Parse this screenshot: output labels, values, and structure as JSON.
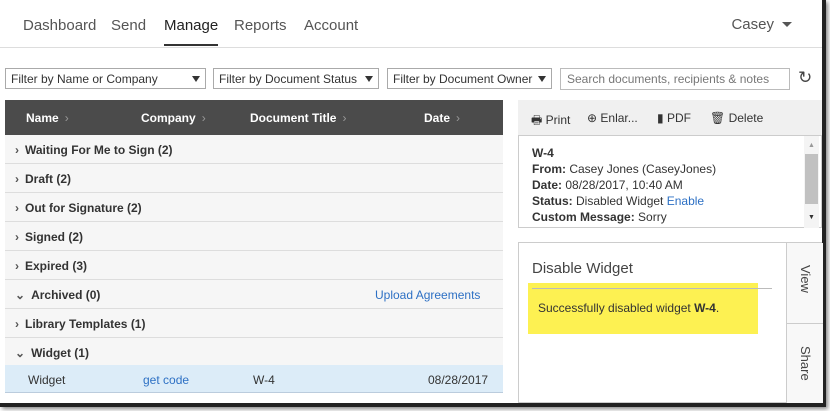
{
  "nav": {
    "tabs": [
      "Dashboard",
      "Send",
      "Manage",
      "Reports",
      "Account"
    ],
    "active": "Manage",
    "user": "Casey"
  },
  "filters": {
    "name": "Filter by Name or Company",
    "status": "Filter by Document Status",
    "owner": "Filter by Document Owner",
    "search_placeholder": "Search documents, recipients & notes"
  },
  "table": {
    "headers": [
      "Name",
      "Company",
      "Document Title",
      "Date"
    ],
    "groups": [
      {
        "label": "Waiting For Me to Sign (2)",
        "expanded": false
      },
      {
        "label": "Draft (2)",
        "expanded": false
      },
      {
        "label": "Out for Signature (2)",
        "expanded": false
      },
      {
        "label": "Signed (2)",
        "expanded": false
      },
      {
        "label": "Expired (3)",
        "expanded": false
      },
      {
        "label": "Archived (0)",
        "expanded": true,
        "link": "Upload Agreements"
      },
      {
        "label": "Library Templates (1)",
        "expanded": false
      },
      {
        "label": "Widget (1)",
        "expanded": true
      }
    ],
    "selected_row": {
      "name": "Widget",
      "company": "get code",
      "title": "W-4",
      "date": "08/28/2017"
    }
  },
  "toolbar": {
    "print": "Print",
    "enlarge": "Enlar...",
    "pdf": "PDF",
    "delete": "Delete"
  },
  "details": {
    "title": "W-4",
    "from_label": "From:",
    "from": "Casey Jones (CaseyJones)",
    "date_label": "Date:",
    "date": "08/28/2017, 10:40 AM",
    "status_label": "Status:",
    "status": "Disabled Widget",
    "status_link": "Enable",
    "msg_label": "Custom Message:",
    "msg": "Sorry"
  },
  "panel": {
    "title": "Disable Widget",
    "message": "Successfully disabled widget ",
    "message_bold": "W-4",
    "message_end": ".",
    "tabs": [
      "View",
      "Share"
    ]
  },
  "colors": {
    "accent": "#2d70c4",
    "header": "#4b4b4b",
    "highlight": "#fdf152",
    "selected": "#dcecf8"
  }
}
